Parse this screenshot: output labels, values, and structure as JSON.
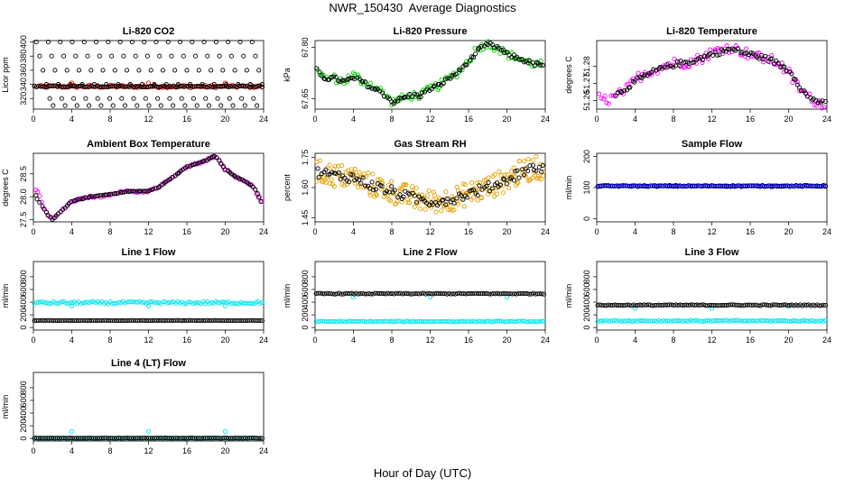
{
  "title": "NWR_150430  Average Diagnostics",
  "xlabel": "Hour of Day (UTC)",
  "colors": {
    "black": "#000000",
    "red": "#ff0000",
    "green": "#00cc00",
    "magenta": "#ff00ff",
    "orange": "#e6a000",
    "blue": "#0000cc",
    "cyan": "#00e5ee"
  },
  "chart_data": [
    {
      "type": "scatter",
      "title": "Li-820 CO2",
      "ylabel": "Licor ppm",
      "xlim": [
        0,
        24
      ],
      "ylim": [
        305,
        402
      ],
      "yticks": [
        320,
        340,
        360,
        380,
        400
      ],
      "xticks": [
        0,
        4,
        8,
        12,
        16,
        20,
        24
      ],
      "series": [
        {
          "color": "red",
          "pattern": "band",
          "y0": 335,
          "y1": 339,
          "outliers": [
            [
              4,
              342
            ],
            [
              12,
              342
            ],
            [
              20,
              342
            ]
          ]
        },
        {
          "color": "black",
          "pattern": "band",
          "y0": 336,
          "y1": 338
        },
        {
          "color": "black",
          "pattern": "levels",
          "values": [
            400,
            380,
            360,
            340,
            320,
            310
          ],
          "period": 1.25
        }
      ]
    },
    {
      "type": "scatter",
      "title": "Li-820 Pressure",
      "ylabel": "kPa",
      "xlim": [
        0,
        24
      ],
      "ylim": [
        67.62,
        67.82
      ],
      "yticks": [
        67.65,
        67.8
      ],
      "ytick_labels": [
        "67.65",
        "67.80"
      ],
      "xticks": [
        0,
        4,
        8,
        12,
        16,
        20,
        24
      ],
      "series": [
        {
          "color": "green",
          "pattern": "curve",
          "spread": 0.012,
          "x": [
            0,
            0.5,
            1,
            2,
            3,
            4,
            5,
            6,
            7,
            8,
            9,
            10,
            11,
            12,
            13,
            14,
            15,
            16,
            17,
            18,
            19,
            20,
            21,
            22,
            23,
            24
          ],
          "y": [
            67.76,
            67.72,
            67.71,
            67.71,
            67.7,
            67.72,
            67.7,
            67.69,
            67.67,
            67.64,
            67.65,
            67.66,
            67.66,
            67.68,
            67.69,
            67.71,
            67.73,
            67.76,
            67.8,
            67.81,
            67.8,
            67.78,
            67.77,
            67.76,
            67.75,
            67.75
          ]
        },
        {
          "color": "black",
          "pattern": "curve",
          "spread": 0.006,
          "x": [
            0,
            1,
            2,
            3,
            4,
            5,
            6,
            7,
            8,
            9,
            10,
            11,
            12,
            13,
            14,
            15,
            16,
            17,
            18,
            19,
            20,
            21,
            22,
            23,
            24
          ],
          "y": [
            67.74,
            67.71,
            67.71,
            67.7,
            67.71,
            67.7,
            67.68,
            67.67,
            67.64,
            67.65,
            67.66,
            67.66,
            67.68,
            67.69,
            67.71,
            67.73,
            67.76,
            67.79,
            67.81,
            67.8,
            67.78,
            67.77,
            67.76,
            67.75,
            67.75
          ]
        }
      ]
    },
    {
      "type": "scatter",
      "title": "Li-820 Temperature",
      "ylabel": "degrees C",
      "xlim": [
        0,
        24
      ],
      "ylim": [
        51.255,
        51.295
      ],
      "yticks": [
        51.26,
        51.27,
        51.28
      ],
      "ytick_labels": [
        "51.26",
        "51.27",
        "51.28"
      ],
      "xticks": [
        0,
        4,
        8,
        12,
        16,
        20,
        24
      ],
      "series": [
        {
          "color": "magenta",
          "pattern": "curve",
          "spread": 0.003,
          "x": [
            0,
            1,
            2,
            3,
            4,
            5,
            6,
            7,
            8,
            9,
            10,
            11,
            12,
            13,
            14,
            15,
            16,
            17,
            18,
            19,
            20,
            21,
            22,
            23,
            24
          ],
          "y": [
            51.262,
            51.26,
            51.262,
            51.266,
            51.272,
            51.276,
            51.278,
            51.28,
            51.282,
            51.282,
            51.283,
            51.285,
            51.288,
            51.29,
            51.291,
            51.289,
            51.287,
            51.285,
            51.284,
            51.282,
            51.276,
            51.268,
            51.262,
            51.259,
            51.258
          ]
        },
        {
          "color": "black",
          "pattern": "curve",
          "spread": 0.0015,
          "x": [
            2,
            4,
            6,
            8,
            10,
            12,
            14,
            16,
            18,
            20,
            22,
            23.8
          ],
          "y": [
            51.263,
            51.271,
            51.277,
            51.281,
            51.283,
            51.287,
            51.29,
            51.287,
            51.284,
            51.278,
            51.262,
            51.258
          ]
        }
      ]
    },
    {
      "type": "scatter",
      "title": "Ambient Box Temperature",
      "ylabel": "degrees C",
      "xlim": [
        0,
        24
      ],
      "ylim": [
        27.45,
        28.95
      ],
      "yticks": [
        27.5,
        28.0,
        28.5
      ],
      "ytick_labels": [
        "27.5",
        "28.0",
        "28.5"
      ],
      "xticks": [
        0,
        4,
        8,
        12,
        16,
        20,
        24
      ],
      "series": [
        {
          "color": "magenta",
          "pattern": "curve",
          "spread": 0.02,
          "x": [
            0,
            0.5,
            1,
            1.5,
            2,
            3,
            4,
            5,
            6,
            7,
            8,
            9,
            10,
            11,
            12,
            13,
            14,
            15,
            16,
            17,
            18,
            19,
            20,
            21,
            22,
            23,
            24
          ],
          "y": [
            28.2,
            28.1,
            27.8,
            27.6,
            27.5,
            27.7,
            27.9,
            27.95,
            28.0,
            28.0,
            28.05,
            28.1,
            28.12,
            28.1,
            28.12,
            28.2,
            28.35,
            28.5,
            28.65,
            28.72,
            28.8,
            28.9,
            28.6,
            28.45,
            28.35,
            28.2,
            27.8
          ]
        },
        {
          "color": "black",
          "pattern": "curve",
          "spread": 0.005,
          "x": [
            0,
            1,
            1.5,
            2,
            3,
            4,
            6,
            8,
            10,
            12,
            13,
            14,
            15,
            16,
            17,
            18,
            19,
            20,
            21,
            22,
            23,
            24
          ],
          "y": [
            28.1,
            27.75,
            27.6,
            27.5,
            27.7,
            27.9,
            28.0,
            28.05,
            28.12,
            28.12,
            28.2,
            28.35,
            28.5,
            28.65,
            28.72,
            28.8,
            28.9,
            28.6,
            28.45,
            28.35,
            28.2,
            27.8
          ]
        }
      ]
    },
    {
      "type": "scatter",
      "title": "Gas Stream RH",
      "ylabel": "percent",
      "xlim": [
        0,
        24
      ],
      "ylim": [
        1.43,
        1.77
      ],
      "yticks": [
        1.45,
        1.6,
        1.75
      ],
      "ytick_labels": [
        "1.45",
        "1.60",
        "1.75"
      ],
      "xticks": [
        0,
        4,
        8,
        12,
        16,
        20,
        24
      ],
      "series": [
        {
          "color": "orange",
          "pattern": "curve",
          "spread": 0.06,
          "density": 10,
          "x": [
            0,
            2,
            4,
            6,
            8,
            10,
            12,
            14,
            16,
            18,
            20,
            22,
            24
          ],
          "y": [
            1.68,
            1.66,
            1.65,
            1.61,
            1.58,
            1.55,
            1.53,
            1.54,
            1.57,
            1.6,
            1.64,
            1.69,
            1.7
          ]
        },
        {
          "color": "black",
          "pattern": "curve",
          "spread": 0.025,
          "x": [
            0,
            2,
            4,
            6,
            8,
            10,
            12,
            14,
            16,
            18,
            20,
            22,
            24
          ],
          "y": [
            1.68,
            1.66,
            1.65,
            1.61,
            1.58,
            1.55,
            1.53,
            1.54,
            1.57,
            1.6,
            1.64,
            1.69,
            1.7
          ]
        }
      ]
    },
    {
      "type": "scatter",
      "title": "Sample Flow",
      "ylabel": "ml/min",
      "xlim": [
        0,
        24
      ],
      "ylim": [
        -10,
        210
      ],
      "yticks": [
        0,
        100,
        200
      ],
      "xticks": [
        0,
        4,
        8,
        12,
        16,
        20,
        24
      ],
      "series": [
        {
          "color": "black",
          "pattern": "band",
          "y0": 103,
          "y1": 107
        },
        {
          "color": "blue",
          "pattern": "band",
          "y0": 104,
          "y1": 106
        }
      ]
    },
    {
      "type": "scatter",
      "title": "Line 1 Flow",
      "ylabel": "ml/min",
      "xlim": [
        0,
        24
      ],
      "ylim": [
        -40,
        1040
      ],
      "yticks": [
        0,
        200,
        400,
        600,
        800
      ],
      "xticks": [
        0,
        4,
        8,
        12,
        16,
        20,
        24
      ],
      "series": [
        {
          "color": "cyan",
          "pattern": "band",
          "y0": 370,
          "y1": 410,
          "outliers": [
            [
              4,
              340
            ],
            [
              12,
              340
            ],
            [
              20,
              340
            ]
          ]
        },
        {
          "color": "black",
          "pattern": "band",
          "y0": 108,
          "y1": 112
        }
      ]
    },
    {
      "type": "scatter",
      "title": "Line 2 Flow",
      "ylabel": "ml/min",
      "xlim": [
        0,
        24
      ],
      "ylim": [
        -40,
        1040
      ],
      "yticks": [
        0,
        200,
        400,
        600,
        800
      ],
      "xticks": [
        0,
        4,
        8,
        12,
        16,
        20,
        24
      ],
      "series": [
        {
          "color": "cyan",
          "pattern": "band",
          "y0": 88,
          "y1": 102,
          "outliers": [
            [
              0,
              500
            ],
            [
              4,
              480
            ],
            [
              12,
              480
            ],
            [
              20,
              480
            ]
          ]
        },
        {
          "color": "black",
          "pattern": "band",
          "y0": 525,
          "y1": 540
        }
      ]
    },
    {
      "type": "scatter",
      "title": "Line 3 Flow",
      "ylabel": "ml/min",
      "xlim": [
        0,
        24
      ],
      "ylim": [
        -40,
        1040
      ],
      "yticks": [
        0,
        200,
        400,
        600,
        800
      ],
      "xticks": [
        0,
        4,
        8,
        12,
        16,
        20,
        24
      ],
      "series": [
        {
          "color": "cyan",
          "pattern": "band",
          "y0": 95,
          "y1": 115,
          "outliers": [
            [
              0,
              330
            ],
            [
              4,
              300
            ],
            [
              12,
              300
            ],
            [
              20,
              330
            ]
          ]
        },
        {
          "color": "black",
          "pattern": "band",
          "y0": 345,
          "y1": 360
        }
      ]
    },
    {
      "type": "scatter",
      "title": "Line 4 (LT) Flow",
      "ylabel": "ml/min",
      "xlim": [
        0,
        24
      ],
      "ylim": [
        -40,
        1040
      ],
      "yticks": [
        0,
        200,
        400,
        600,
        800
      ],
      "xticks": [
        0,
        4,
        8,
        12,
        16,
        20,
        24
      ],
      "series": [
        {
          "color": "cyan",
          "pattern": "band",
          "y0": 3,
          "y1": 7,
          "outliers": [
            [
              4,
              110
            ],
            [
              12,
              110
            ],
            [
              20,
              110
            ]
          ]
        },
        {
          "color": "black",
          "pattern": "band",
          "y0": 3,
          "y1": 7
        }
      ]
    }
  ]
}
